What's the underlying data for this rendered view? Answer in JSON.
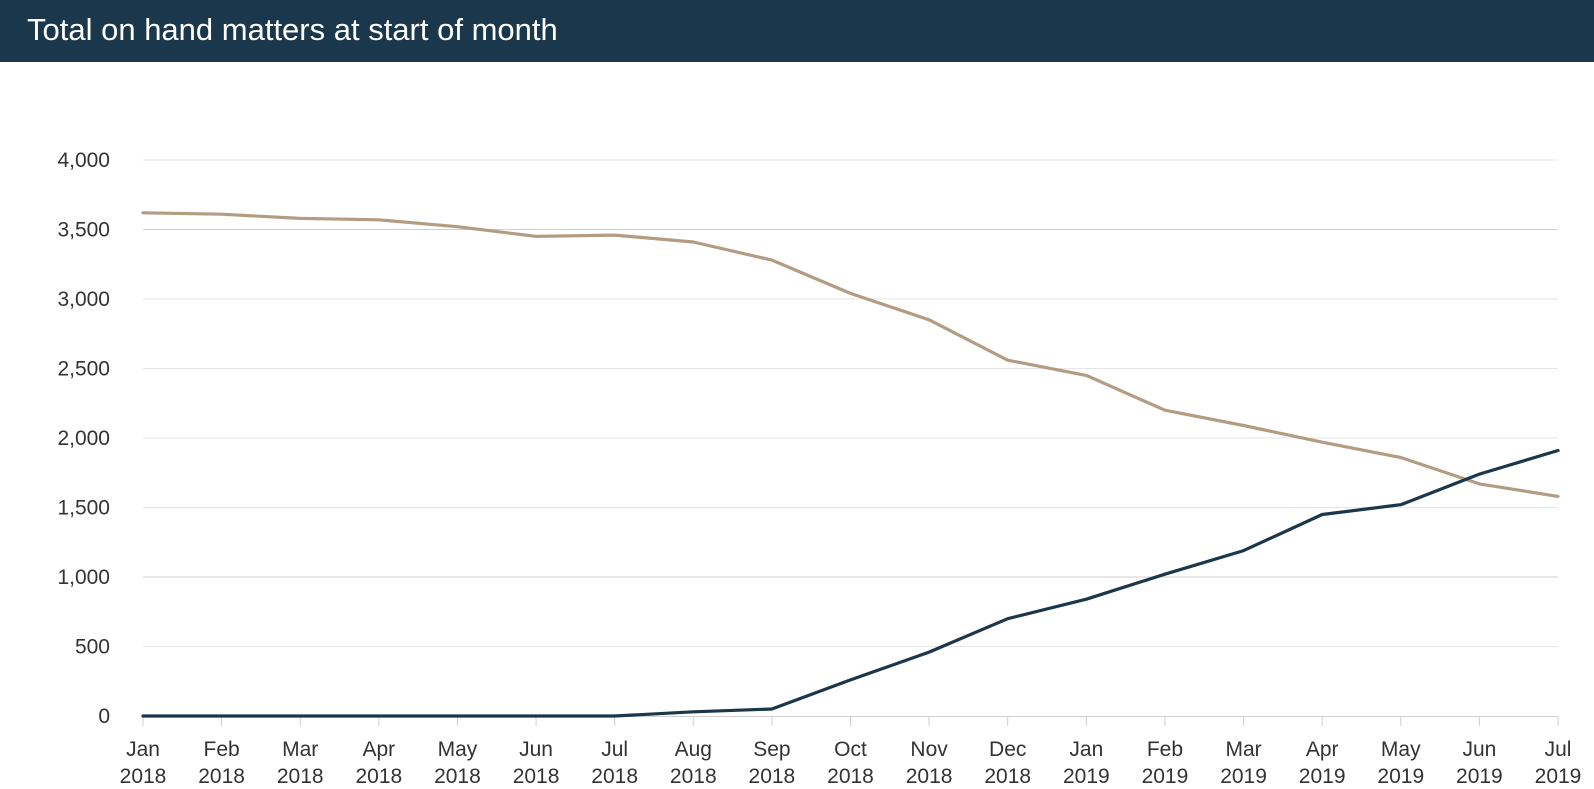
{
  "header": {
    "title": "Total on hand matters at start of month"
  },
  "colors": {
    "header_bg": "#1b374c",
    "series_1": "#b49c82",
    "series_2": "#1b374c",
    "grid": "#e6e6e6",
    "grid_strong": "#cfcfcf",
    "axis": "#cfcfcf"
  },
  "chart_data": {
    "type": "line",
    "title": "Total on hand matters at start of month",
    "categories": [
      [
        "Jan",
        "2018"
      ],
      [
        "Feb",
        "2018"
      ],
      [
        "Mar",
        "2018"
      ],
      [
        "Apr",
        "2018"
      ],
      [
        "May",
        "2018"
      ],
      [
        "Jun",
        "2018"
      ],
      [
        "Jul",
        "2018"
      ],
      [
        "Aug",
        "2018"
      ],
      [
        "Sep",
        "2018"
      ],
      [
        "Oct",
        "2018"
      ],
      [
        "Nov",
        "2018"
      ],
      [
        "Dec",
        "2018"
      ],
      [
        "Jan",
        "2019"
      ],
      [
        "Feb",
        "2019"
      ],
      [
        "Mar",
        "2019"
      ],
      [
        "Apr",
        "2019"
      ],
      [
        "May",
        "2019"
      ],
      [
        "Jun",
        "2019"
      ],
      [
        "Jul",
        "2019"
      ]
    ],
    "y_ticks": [
      "0",
      "500",
      "1,000",
      "1,500",
      "2,000",
      "2,500",
      "3,000",
      "3,500",
      "4,000"
    ],
    "ylim": [
      0,
      4000
    ],
    "grid": true,
    "legend": "none",
    "series": [
      {
        "color": "#b49c82",
        "values": [
          3620,
          3610,
          3580,
          3570,
          3520,
          3450,
          3460,
          3410,
          3280,
          3040,
          2850,
          2560,
          2450,
          2200,
          2090,
          1970,
          1860,
          1670,
          1580
        ]
      },
      {
        "color": "#1b374c",
        "values": [
          0,
          0,
          0,
          0,
          0,
          0,
          0,
          30,
          50,
          260,
          460,
          700,
          840,
          1020,
          1190,
          1450,
          1520,
          1740,
          1910
        ]
      }
    ]
  }
}
